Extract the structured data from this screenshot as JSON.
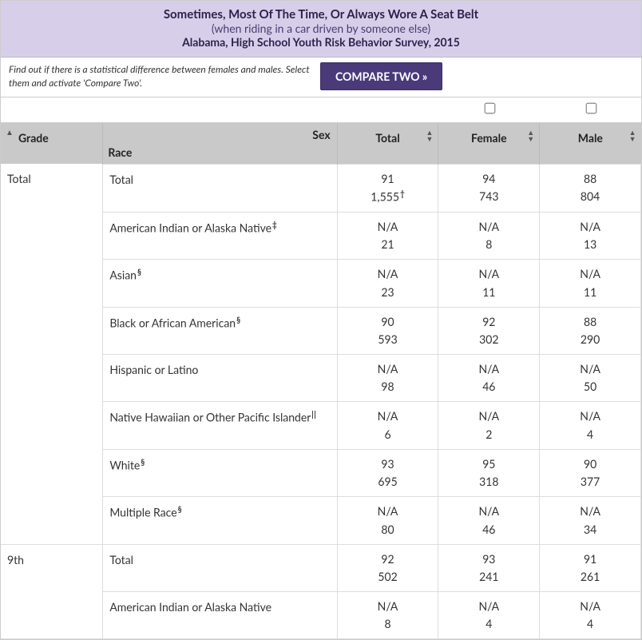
{
  "header": {
    "title": "Sometimes, Most Of The Time, Or Always Wore A Seat Belt",
    "subtitle": "(when riding in a car driven by someone else)",
    "source": "Alabama, High School Youth Risk Behavior Survey, 2015"
  },
  "hint": "Find out if there is a statistical difference between females and males. Select them and activate 'Compare Two'.",
  "compare_label": "COMPARE TWO »",
  "columns": {
    "grade": "Grade",
    "race": "Race",
    "sex": "Sex",
    "total": "Total",
    "female": "Female",
    "male": "Male"
  },
  "groups": [
    {
      "grade": "Total",
      "rows": [
        {
          "race": "Total",
          "sup": "",
          "total_v": "91",
          "total_n": "1,555",
          "total_nsup": "†",
          "female_v": "94",
          "female_n": "743",
          "male_v": "88",
          "male_n": "804"
        },
        {
          "race": "American Indian or Alaska Native",
          "sup": "‡",
          "total_v": "N/A",
          "total_n": "21",
          "total_nsup": "",
          "female_v": "N/A",
          "female_n": "8",
          "male_v": "N/A",
          "male_n": "13"
        },
        {
          "race": "Asian",
          "sup": "§",
          "total_v": "N/A",
          "total_n": "23",
          "total_nsup": "",
          "female_v": "N/A",
          "female_n": "11",
          "male_v": "N/A",
          "male_n": "11"
        },
        {
          "race": "Black or African American",
          "sup": "§",
          "total_v": "90",
          "total_n": "593",
          "total_nsup": "",
          "female_v": "92",
          "female_n": "302",
          "male_v": "88",
          "male_n": "290"
        },
        {
          "race": "Hispanic or Latino",
          "sup": "",
          "total_v": "N/A",
          "total_n": "98",
          "total_nsup": "",
          "female_v": "N/A",
          "female_n": "46",
          "male_v": "N/A",
          "male_n": "50"
        },
        {
          "race": "Native Hawaiian or Other Pacific Islander",
          "sup": "ǁ",
          "total_v": "N/A",
          "total_n": "6",
          "total_nsup": "",
          "female_v": "N/A",
          "female_n": "2",
          "male_v": "N/A",
          "male_n": "4"
        },
        {
          "race": "White",
          "sup": "§",
          "total_v": "93",
          "total_n": "695",
          "total_nsup": "",
          "female_v": "95",
          "female_n": "318",
          "male_v": "90",
          "male_n": "377"
        },
        {
          "race": "Multiple Race",
          "sup": "§",
          "total_v": "N/A",
          "total_n": "80",
          "total_nsup": "",
          "female_v": "N/A",
          "female_n": "46",
          "male_v": "N/A",
          "male_n": "34"
        }
      ]
    },
    {
      "grade": "9th",
      "rows": [
        {
          "race": "Total",
          "sup": "",
          "total_v": "92",
          "total_n": "502",
          "total_nsup": "",
          "female_v": "93",
          "female_n": "241",
          "male_v": "91",
          "male_n": "261"
        },
        {
          "race": "American Indian or Alaska Native",
          "sup": "",
          "total_v": "N/A",
          "total_n": "8",
          "total_nsup": "",
          "female_v": "N/A",
          "female_n": "4",
          "male_v": "N/A",
          "male_n": "4"
        }
      ]
    }
  ]
}
